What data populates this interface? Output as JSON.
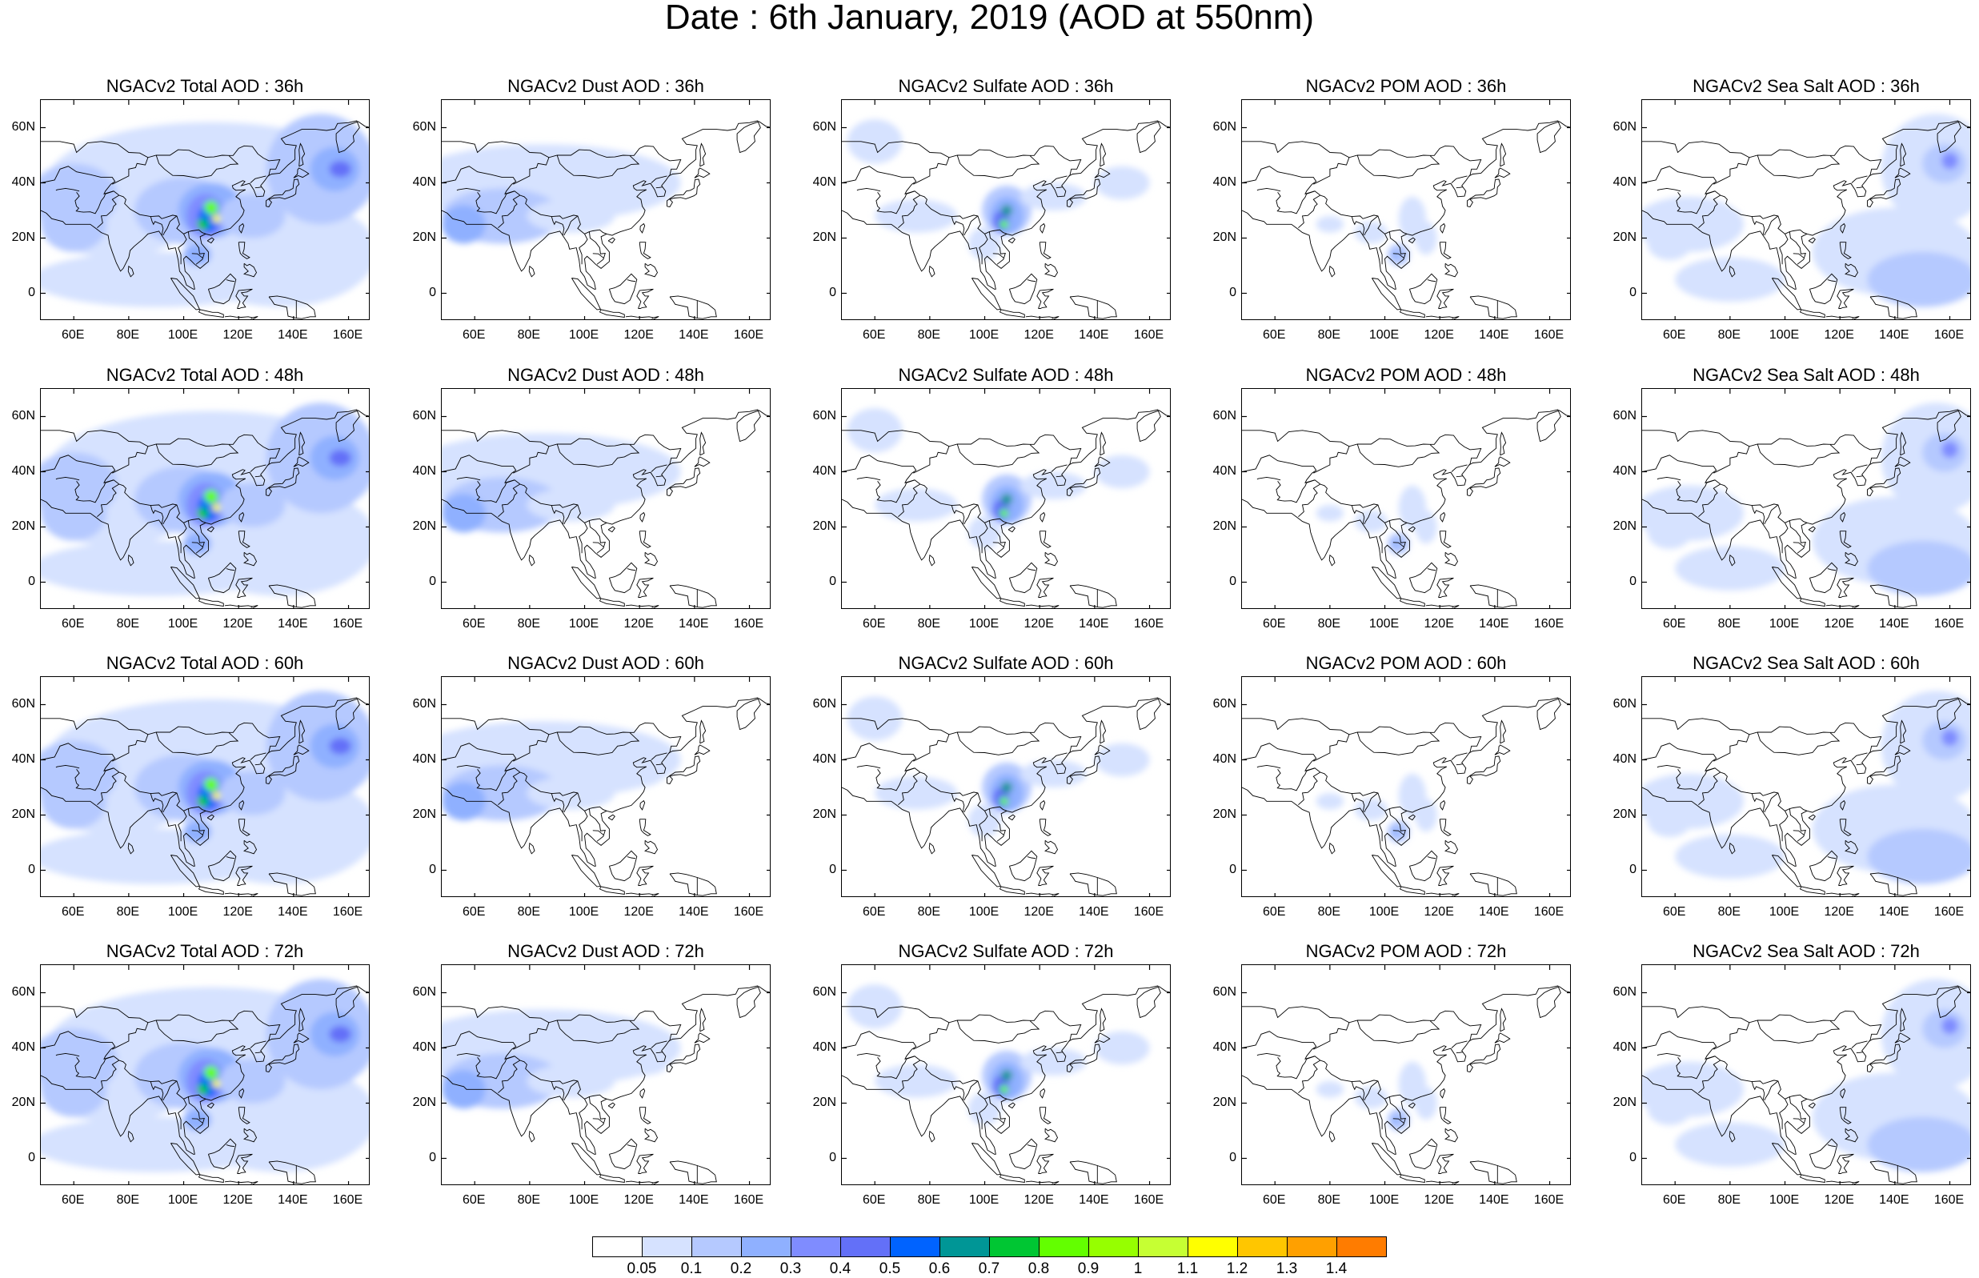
{
  "title": "Date : 6th January, 2019 (AOD at 550nm)",
  "panel_titles": [
    [
      "NGACv2 Total AOD : 36h",
      "NGACv2 Dust AOD : 36h",
      "NGACv2 Sulfate AOD : 36h",
      "NGACv2 POM AOD : 36h",
      "NGACv2 Sea Salt AOD : 36h"
    ],
    [
      "NGACv2 Total AOD : 48h",
      "NGACv2 Dust AOD : 48h",
      "NGACv2 Sulfate AOD : 48h",
      "NGACv2 POM AOD : 48h",
      "NGACv2 Sea Salt AOD : 48h"
    ],
    [
      "NGACv2 Total AOD : 60h",
      "NGACv2 Dust AOD : 60h",
      "NGACv2 Sulfate AOD : 60h",
      "NGACv2 POM AOD : 60h",
      "NGACv2 Sea Salt AOD : 60h"
    ],
    [
      "NGACv2 Total AOD : 72h",
      "NGACv2 Dust AOD : 72h",
      "NGACv2 Sulfate AOD : 72h",
      "NGACv2 POM AOD : 72h",
      "NGACv2 Sea Salt  AOD : 72h"
    ]
  ],
  "lat_ticks": [
    "60N",
    "40N",
    "20N",
    "0"
  ],
  "lon_ticks": [
    "60E",
    "80E",
    "100E",
    "120E",
    "140E",
    "160E"
  ],
  "colorbar": {
    "labels": [
      "0.05",
      "0.1",
      "0.2",
      "0.3",
      "0.4",
      "0.5",
      "0.6",
      "0.7",
      "0.8",
      "0.9",
      "1",
      "1.1",
      "1.2",
      "1.3",
      "1.4"
    ],
    "colors": [
      "#ffffff",
      "#d6e2ff",
      "#b5c9ff",
      "#8fb0ff",
      "#7f8cff",
      "#6370f8",
      "#0063ff",
      "#009696",
      "#00c633",
      "#63ff00",
      "#96ff00",
      "#c6ff33",
      "#ffff00",
      "#ffc600",
      "#ffa000",
      "#ff7c00",
      "#ff1900"
    ]
  },
  "map_extent": {
    "lon_min": 48,
    "lon_max": 168,
    "lat_min": -10,
    "lat_max": 70
  }
}
